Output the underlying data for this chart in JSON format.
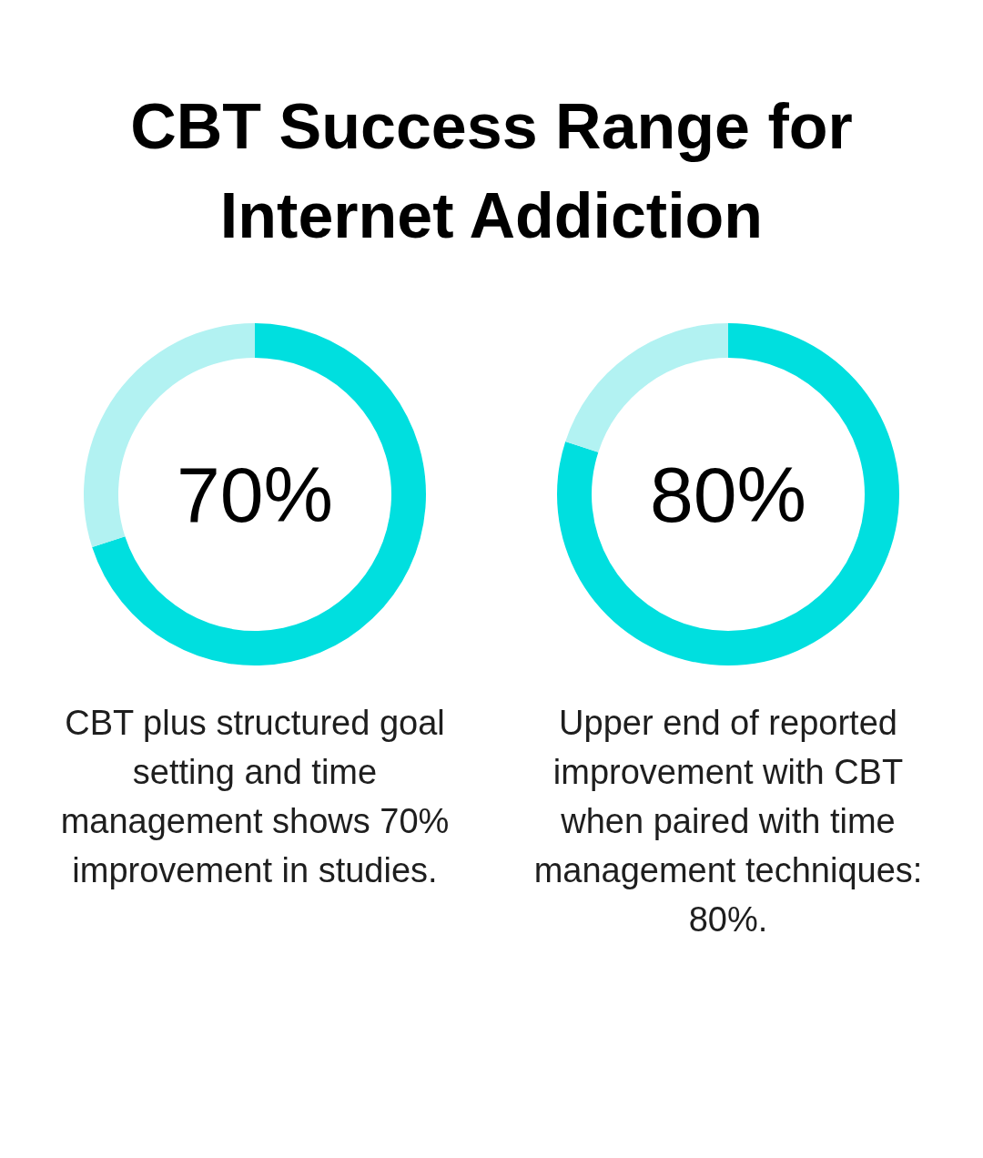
{
  "chart_data": [
    {
      "type": "donut",
      "title": "CBT Success Range for Internet Addiction",
      "categories": [
        null,
        null
      ],
      "values": [
        70,
        30
      ],
      "colors": [
        "#00dfdf",
        "#b2f2f2"
      ],
      "annotations": [
        "70%",
        "CBT plus structured goal setting and time management shows 70% improvement in studies."
      ]
    },
    {
      "type": "donut",
      "categories": [
        null,
        null
      ],
      "values": [
        80,
        20
      ],
      "colors": [
        "#00dfdf",
        "#b2f2f2"
      ],
      "annotations": [
        "80%",
        "Upper end of reported improvement with CBT when paired with time management techniques: 80%."
      ]
    }
  ]
}
